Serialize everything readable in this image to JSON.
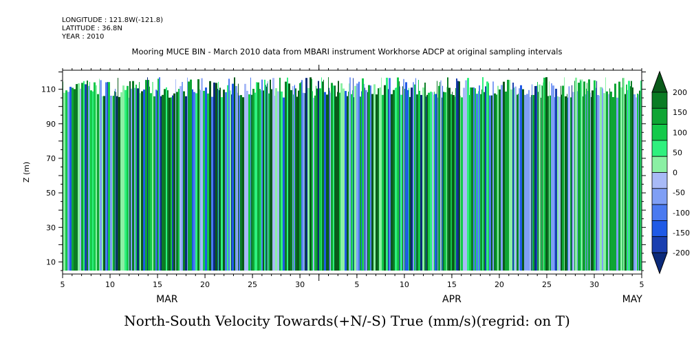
{
  "header": {
    "longitude": "LONGITUDE : 121.8W(-121.8)",
    "latitude": "LATITUDE : 36.8N",
    "year": "YEAR : 2010"
  },
  "title": "Mooring MUCE BIN - March 2010 data from MBARI instrument Workhorse ADCP at original sampling intervals",
  "caption": "North-South Velocity Towards(+N/-S) True (mm/s)(regrid: on T)",
  "chart_data": {
    "type": "heatmap",
    "title": "Mooring MUCE BIN - March 2010 data from MBARI instrument Workhorse ADCP at original sampling intervals",
    "xlabel": "",
    "ylabel": "Z (m)",
    "x_start": "2010-03-05",
    "x_end": "2010-05-05",
    "x_ticks": [
      {
        "date": "2010-03-05",
        "label": "5"
      },
      {
        "date": "2010-03-10",
        "label": "10"
      },
      {
        "date": "2010-03-15",
        "label": "15"
      },
      {
        "date": "2010-03-20",
        "label": "20"
      },
      {
        "date": "2010-03-25",
        "label": "25"
      },
      {
        "date": "2010-03-30",
        "label": "30"
      },
      {
        "date": "2010-04-05",
        "label": "5"
      },
      {
        "date": "2010-04-10",
        "label": "10"
      },
      {
        "date": "2010-04-15",
        "label": "15"
      },
      {
        "date": "2010-04-20",
        "label": "20"
      },
      {
        "date": "2010-04-25",
        "label": "25"
      },
      {
        "date": "2010-04-30",
        "label": "30"
      },
      {
        "date": "2010-05-05",
        "label": "5"
      }
    ],
    "month_labels": [
      {
        "date": "2010-03-16",
        "label": "MAR"
      },
      {
        "date": "2010-04-15",
        "label": "APR"
      },
      {
        "date": "2010-05-04",
        "label": "MAY"
      }
    ],
    "ylim": [
      3,
      121
    ],
    "y_ticks": [
      10,
      30,
      50,
      70,
      90,
      110
    ],
    "colorbar": {
      "levels": [
        -200,
        -150,
        -100,
        -50,
        0,
        50,
        100,
        150,
        200
      ],
      "tick_labels": [
        "200",
        "150",
        "100",
        "50",
        "0",
        "-50",
        "-100",
        "-150",
        "-200"
      ],
      "colors": [
        "#0b2a7a",
        "#1a3fb0",
        "#1f5ae6",
        "#4a7af0",
        "#7f9ff5",
        "#a8baf7",
        "#8bf0a4",
        "#2ff07e",
        "#14c94a",
        "#0fa534",
        "#0a7c24",
        "#0a5a1a"
      ],
      "extend": "both"
    },
    "series": [
      {
        "name": "",
        "date_range": [
          "2010-03-05",
          "2010-05-05"
        ],
        "z_range": [
          5,
          117
        ]
      }
    ]
  }
}
